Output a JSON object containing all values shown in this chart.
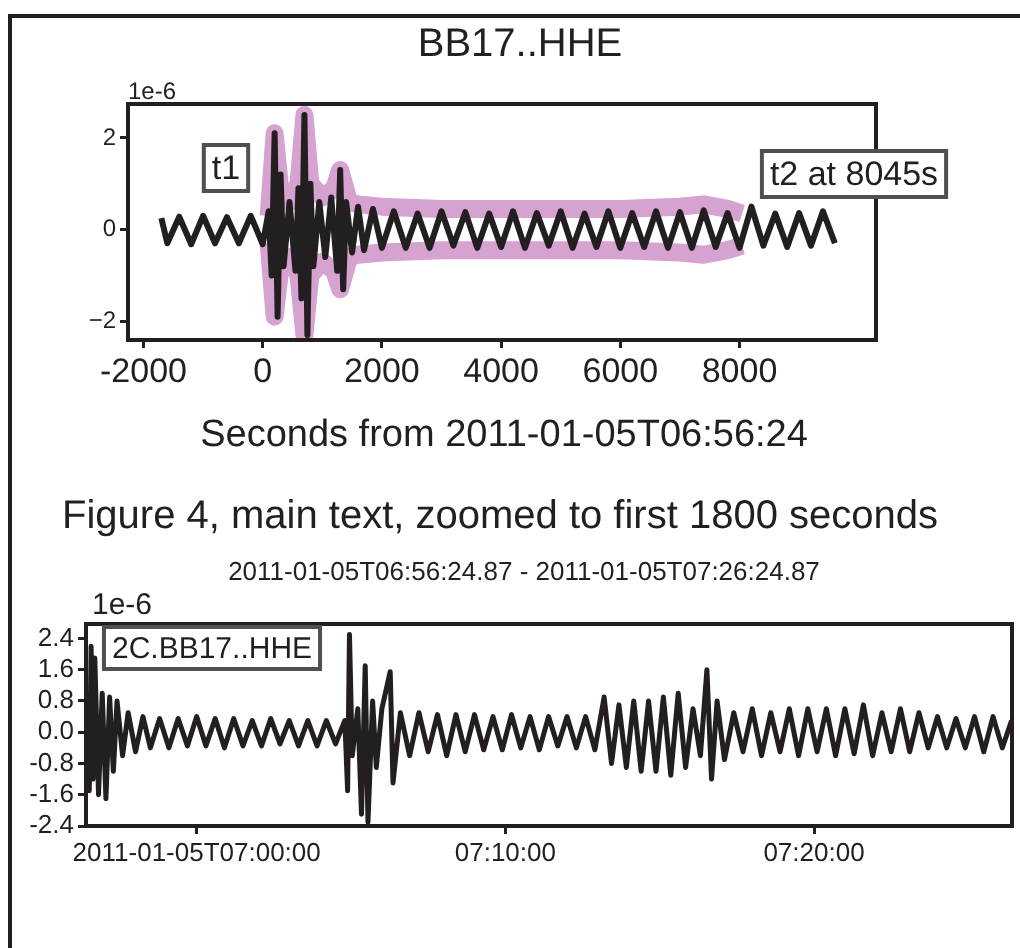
{
  "chart_data": [
    {
      "type": "line",
      "title": "BB17..HHE",
      "xlabel": "Seconds from 2011-01-05T06:56:24",
      "marker": "none",
      "legend": false,
      "xlim": [
        -2260,
        10290
      ],
      "xticks": [
        -2000,
        0,
        2000,
        4000,
        6000,
        8000
      ],
      "ylim": [
        -2.41,
        2.74
      ],
      "yticks": [
        {
          "value": -2,
          "label": "−2"
        },
        0,
        2
      ],
      "annotations": [
        "1e-6",
        "t1",
        "t2 at 8045s"
      ],
      "series": [
        {
          "color": "#231f20",
          "x": [
            -1700,
            -1600,
            -1400,
            -1200,
            -1000,
            -800,
            -600,
            -400,
            -200,
            0,
            100,
            150,
            200,
            250,
            300,
            350,
            450,
            550,
            600,
            650,
            700,
            750,
            800,
            850,
            950,
            1050,
            1150,
            1250,
            1300,
            1350,
            1400,
            1500,
            1600,
            1700,
            1850,
            2000,
            2200,
            2400,
            2600,
            2800,
            3000,
            3200,
            3400,
            3600,
            3800,
            4000,
            4200,
            4400,
            4600,
            4800,
            5000,
            5200,
            5400,
            5600,
            5800,
            6000,
            6200,
            6400,
            6600,
            6800,
            7000,
            7200,
            7400,
            7600,
            7800,
            8000,
            8200,
            8400,
            8600,
            8800,
            9000,
            9200,
            9400,
            9600
          ],
          "values": [
            0.25,
            -0.3,
            0.28,
            -0.32,
            0.3,
            -0.3,
            0.27,
            -0.3,
            0.3,
            -0.32,
            0.4,
            -1.0,
            2.1,
            -1.9,
            1.2,
            -0.8,
            0.6,
            -0.9,
            0.9,
            -1.5,
            2.5,
            -2.3,
            1.0,
            -0.8,
            0.6,
            -0.6,
            0.7,
            -0.9,
            1.3,
            -1.3,
            0.6,
            -0.5,
            0.5,
            -0.45,
            0.45,
            -0.4,
            0.4,
            -0.4,
            0.35,
            -0.4,
            0.4,
            -0.35,
            0.38,
            -0.4,
            0.35,
            -0.38,
            0.4,
            -0.4,
            0.36,
            -0.35,
            0.4,
            -0.4,
            0.35,
            -0.38,
            0.4,
            -0.4,
            0.36,
            -0.38,
            0.4,
            -0.4,
            0.38,
            -0.4,
            0.42,
            -0.38,
            0.36,
            -0.4,
            0.5,
            -0.35,
            0.35,
            -0.38,
            0.36,
            -0.35,
            0.4,
            -0.3
          ]
        },
        {
          "color": "#d6a2d0",
          "x": [
            100,
            200,
            300,
            450,
            600,
            700,
            800,
            1000,
            1200,
            1300,
            1450,
            1600,
            2000,
            3000,
            4000,
            5000,
            6000,
            7000,
            7400,
            7800,
            8045
          ],
          "values": [
            0.3,
            2.1,
            0.8,
            0.6,
            1.0,
            2.5,
            1.0,
            0.7,
            0.9,
            1.3,
            0.6,
            0.55,
            0.5,
            0.45,
            0.45,
            0.45,
            0.45,
            0.5,
            0.55,
            0.45,
            0.35
          ]
        },
        {
          "color": "#d6a2d0",
          "x": [
            100,
            200,
            300,
            450,
            600,
            700,
            800,
            1000,
            1200,
            1300,
            1450,
            1600,
            2000,
            3000,
            4000,
            5000,
            6000,
            7000,
            7400,
            7800,
            8045
          ],
          "values": [
            -0.3,
            -1.9,
            -0.8,
            -0.6,
            -1.0,
            -2.3,
            -1.0,
            -0.7,
            -0.9,
            -1.3,
            -0.6,
            -0.55,
            -0.5,
            -0.45,
            -0.45,
            -0.45,
            -0.45,
            -0.5,
            -0.55,
            -0.45,
            -0.35
          ]
        }
      ]
    },
    {
      "type": "line",
      "title": "Figure 4, main text, zoomed to first 1800 seconds",
      "subtitle": "2011-01-05T06:56:24.87  -  2011-01-05T07:26:24.87",
      "marker": "none",
      "legend": false,
      "xlim": [
        6.94024,
        7.44024
      ],
      "xticks": [
        {
          "value": 7,
          "label": "2011-01-05T07:00:00"
        },
        {
          "value": 7.16667,
          "label": "07:10:00"
        },
        {
          "value": 7.33333,
          "label": "07:20:00"
        }
      ],
      "ylim": [
        -2.4,
        2.77
      ],
      "yticks": [
        -2.4,
        -1.6,
        -0.8,
        {
          "value": 0,
          "label": "0.0"
        },
        0.8,
        1.6,
        2.4
      ],
      "annotations": [
        "1e-6",
        "2C.BB17..HHE"
      ],
      "series": [
        {
          "color": "#231f20",
          "x": [
            6.941,
            6.942,
            6.943,
            6.944,
            6.945,
            6.947,
            6.949,
            6.951,
            6.953,
            6.955,
            6.957,
            6.96,
            6.963,
            6.967,
            6.971,
            6.975,
            6.98,
            6.985,
            6.99,
            6.995,
            7.0,
            7.005,
            7.01,
            7.015,
            7.02,
            7.025,
            7.03,
            7.035,
            7.04,
            7.045,
            7.05,
            7.055,
            7.06,
            7.065,
            7.07,
            7.075,
            7.08,
            7.0815,
            7.0825,
            7.084,
            7.087,
            7.089,
            7.091,
            7.0925,
            7.095,
            7.097,
            7.1,
            7.1045,
            7.106,
            7.11,
            7.115,
            7.12,
            7.125,
            7.13,
            7.135,
            7.14,
            7.145,
            7.15,
            7.155,
            7.16,
            7.165,
            7.17,
            7.175,
            7.18,
            7.185,
            7.19,
            7.195,
            7.2,
            7.205,
            7.21,
            7.215,
            7.22,
            7.224,
            7.228,
            7.232,
            7.236,
            7.24,
            7.244,
            7.248,
            7.252,
            7.256,
            7.26,
            7.264,
            7.268,
            7.272,
            7.2755,
            7.278,
            7.281,
            7.285,
            7.29,
            7.295,
            7.3,
            7.305,
            7.31,
            7.315,
            7.32,
            7.325,
            7.33,
            7.335,
            7.34,
            7.345,
            7.35,
            7.355,
            7.36,
            7.365,
            7.37,
            7.375,
            7.38,
            7.385,
            7.39,
            7.395,
            7.4,
            7.405,
            7.41,
            7.415,
            7.42,
            7.425,
            7.43,
            7.435,
            7.44
          ],
          "values": [
            0.3,
            -1.5,
            2.2,
            -1.2,
            1.9,
            -1.6,
            1.0,
            -1.7,
            0.9,
            -1.0,
            0.8,
            -0.6,
            0.5,
            -0.5,
            0.4,
            -0.4,
            0.35,
            -0.4,
            0.35,
            -0.35,
            0.4,
            -0.35,
            0.35,
            -0.4,
            0.35,
            -0.35,
            0.3,
            -0.35,
            0.35,
            -0.3,
            0.3,
            -0.35,
            0.3,
            -0.35,
            0.3,
            -0.3,
            0.3,
            -1.5,
            2.5,
            -0.6,
            0.6,
            -2.1,
            1.7,
            -2.3,
            0.8,
            -0.9,
            0.6,
            1.55,
            -1.3,
            0.5,
            -0.6,
            0.5,
            -0.5,
            0.45,
            -0.6,
            0.45,
            -0.5,
            0.45,
            -0.45,
            0.4,
            -0.45,
            0.45,
            -0.4,
            0.4,
            -0.45,
            0.4,
            -0.35,
            0.4,
            -0.4,
            0.4,
            -0.45,
            0.9,
            -0.8,
            0.7,
            -0.9,
            0.8,
            -1.0,
            0.8,
            -1.0,
            0.9,
            -1.1,
            1.0,
            -0.9,
            0.6,
            -0.6,
            1.6,
            -1.2,
            0.8,
            -0.7,
            0.5,
            -0.5,
            0.6,
            -0.6,
            0.5,
            -0.5,
            0.6,
            -0.6,
            0.6,
            -0.5,
            0.6,
            -0.6,
            0.6,
            -0.55,
            0.7,
            -0.6,
            0.5,
            -0.5,
            0.6,
            -0.5,
            0.5,
            -0.4,
            0.4,
            -0.4,
            0.35,
            -0.4,
            0.4,
            -0.5,
            0.4,
            -0.4,
            0.3
          ]
        }
      ]
    }
  ]
}
